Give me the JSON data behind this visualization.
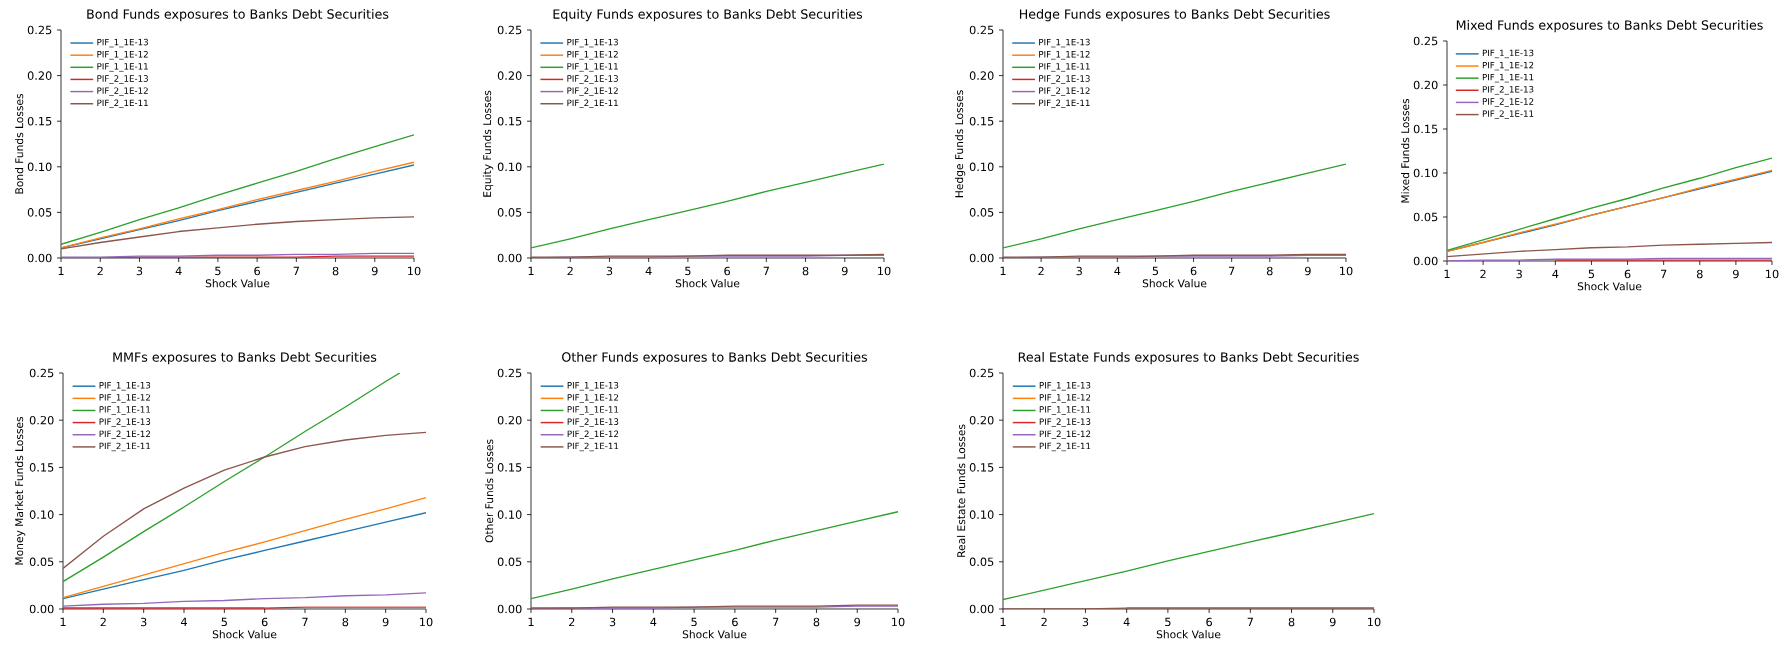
{
  "chart_data": [
    {
      "type": "line",
      "title": "Bond Funds exposures to Banks Debt Securities",
      "xlabel": "Shock Value",
      "ylabel": "Bond Funds Losses",
      "legend": "top left",
      "x": [
        1,
        2,
        3,
        4,
        5,
        6,
        7,
        8,
        9,
        10
      ],
      "xlim": [
        1,
        10
      ],
      "xticks": [
        1,
        2,
        3,
        4,
        5,
        6,
        7,
        8,
        9,
        10
      ],
      "ylim": [
        0,
        0.25
      ],
      "yticks": [
        {
          "value": 0,
          "label": "0.00"
        },
        {
          "value": 0.05,
          "label": "0.05"
        },
        {
          "value": 0.1,
          "label": "0.10"
        },
        {
          "value": 0.15,
          "label": "0.15"
        },
        {
          "value": 0.2,
          "label": "0.20"
        },
        {
          "value": 0.25,
          "label": "0.25"
        }
      ],
      "series": [
        {
          "name": "PIF_1_1E-13",
          "color": "#1f77b4",
          "values": [
            0.011,
            0.021,
            0.031,
            0.041,
            0.052,
            0.062,
            0.072,
            0.082,
            0.092,
            0.102
          ]
        },
        {
          "name": "PIF_1_1E-12",
          "color": "#ff7f0e",
          "values": [
            0.011,
            0.022,
            0.032,
            0.043,
            0.053,
            0.064,
            0.074,
            0.084,
            0.095,
            0.105
          ]
        },
        {
          "name": "PIF_1_1E-11",
          "color": "#2ca02c",
          "values": [
            0.015,
            0.028,
            0.042,
            0.055,
            0.069,
            0.082,
            0.095,
            0.109,
            0.122,
            0.135
          ]
        },
        {
          "name": "PIF_2_1E-13",
          "color": "#d62728",
          "values": [
            0.0,
            0.0,
            0.001,
            0.001,
            0.001,
            0.001,
            0.001,
            0.002,
            0.002,
            0.002
          ]
        },
        {
          "name": "PIF_2_1E-12",
          "color": "#9467bd",
          "values": [
            0.001,
            0.001,
            0.002,
            0.002,
            0.003,
            0.003,
            0.004,
            0.004,
            0.005,
            0.005
          ]
        },
        {
          "name": "PIF_2_1E-11",
          "color": "#8c564b",
          "values": [
            0.01,
            0.017,
            0.023,
            0.029,
            0.033,
            0.037,
            0.04,
            0.042,
            0.044,
            0.045
          ]
        }
      ]
    },
    {
      "type": "line",
      "title": "Equity Funds exposures to Banks Debt Securities",
      "xlabel": "Shock Value",
      "ylabel": "Equity Funds Losses",
      "legend": "top left",
      "x": [
        1,
        2,
        3,
        4,
        5,
        6,
        7,
        8,
        9,
        10
      ],
      "xlim": [
        1,
        10
      ],
      "xticks": [
        1,
        2,
        3,
        4,
        5,
        6,
        7,
        8,
        9,
        10
      ],
      "ylim": [
        0,
        0.25
      ],
      "yticks": [
        {
          "value": 0,
          "label": "0.00"
        },
        {
          "value": 0.05,
          "label": "0.05"
        },
        {
          "value": 0.1,
          "label": "0.10"
        },
        {
          "value": 0.15,
          "label": "0.15"
        },
        {
          "value": 0.2,
          "label": "0.20"
        },
        {
          "value": 0.25,
          "label": "0.25"
        }
      ],
      "series": [
        {
          "name": "PIF_1_1E-13",
          "color": "#1f77b4",
          "values": [
            null,
            null,
            null,
            null,
            null,
            null,
            null,
            null,
            null,
            null
          ]
        },
        {
          "name": "PIF_1_1E-12",
          "color": "#ff7f0e",
          "values": [
            null,
            null,
            null,
            null,
            null,
            null,
            null,
            null,
            null,
            null
          ]
        },
        {
          "name": "PIF_1_1E-11",
          "color": "#2ca02c",
          "values": [
            0.011,
            0.021,
            0.032,
            0.042,
            0.052,
            0.062,
            0.073,
            0.083,
            0.093,
            0.103
          ]
        },
        {
          "name": "PIF_2_1E-13",
          "color": "#d62728",
          "values": [
            null,
            null,
            null,
            null,
            null,
            null,
            null,
            null,
            null,
            null
          ]
        },
        {
          "name": "PIF_2_1E-12",
          "color": "#9467bd",
          "values": [
            0.0,
            0.001,
            0.001,
            0.001,
            0.002,
            0.002,
            0.002,
            0.002,
            0.003,
            0.003
          ]
        },
        {
          "name": "PIF_2_1E-11",
          "color": "#8c564b",
          "values": [
            0.001,
            0.001,
            0.002,
            0.002,
            0.002,
            0.003,
            0.003,
            0.003,
            0.003,
            0.004
          ]
        }
      ]
    },
    {
      "type": "line",
      "title": "Hedge Funds exposures to Banks Debt Securities",
      "xlabel": "Shock Value",
      "ylabel": "Hedge Funds Losses",
      "legend": "top left",
      "x": [
        1,
        2,
        3,
        4,
        5,
        6,
        7,
        8,
        9,
        10
      ],
      "xlim": [
        1,
        10
      ],
      "xticks": [
        1,
        2,
        3,
        4,
        5,
        6,
        7,
        8,
        9,
        10
      ],
      "ylim": [
        0,
        0.25
      ],
      "yticks": [
        {
          "value": 0,
          "label": "0.00"
        },
        {
          "value": 0.05,
          "label": "0.05"
        },
        {
          "value": 0.1,
          "label": "0.10"
        },
        {
          "value": 0.15,
          "label": "0.15"
        },
        {
          "value": 0.2,
          "label": "0.20"
        },
        {
          "value": 0.25,
          "label": "0.25"
        }
      ],
      "series": [
        {
          "name": "PIF_1_1E-13",
          "color": "#1f77b4",
          "values": [
            null,
            null,
            null,
            null,
            null,
            null,
            null,
            null,
            null,
            null
          ]
        },
        {
          "name": "PIF_1_1E-12",
          "color": "#ff7f0e",
          "values": [
            null,
            null,
            null,
            null,
            null,
            null,
            null,
            null,
            null,
            null
          ]
        },
        {
          "name": "PIF_1_1E-11",
          "color": "#2ca02c",
          "values": [
            0.011,
            0.021,
            0.032,
            0.042,
            0.052,
            0.062,
            0.073,
            0.083,
            0.093,
            0.103
          ]
        },
        {
          "name": "PIF_2_1E-13",
          "color": "#d62728",
          "values": [
            null,
            null,
            null,
            null,
            null,
            null,
            null,
            null,
            null,
            null
          ]
        },
        {
          "name": "PIF_2_1E-12",
          "color": "#9467bd",
          "values": [
            0.0,
            0.001,
            0.001,
            0.001,
            0.002,
            0.002,
            0.002,
            0.002,
            0.003,
            0.003
          ]
        },
        {
          "name": "PIF_2_1E-11",
          "color": "#8c564b",
          "values": [
            0.001,
            0.001,
            0.002,
            0.002,
            0.002,
            0.003,
            0.003,
            0.003,
            0.004,
            0.004
          ]
        }
      ]
    },
    {
      "type": "line",
      "title": "Mixed Funds exposures to Banks Debt Securities",
      "xlabel": "Shock Value",
      "ylabel": "Mixed Funds Losses",
      "legend": "top left",
      "x": [
        1,
        2,
        3,
        4,
        5,
        6,
        7,
        8,
        9,
        10
      ],
      "xlim": [
        1,
        10
      ],
      "xticks": [
        1,
        2,
        3,
        4,
        5,
        6,
        7,
        8,
        9,
        10
      ],
      "ylim": [
        0,
        0.25
      ],
      "yticks": [
        {
          "value": 0,
          "label": "0.00"
        },
        {
          "value": 0.05,
          "label": "0.05"
        },
        {
          "value": 0.1,
          "label": "0.10"
        },
        {
          "value": 0.15,
          "label": "0.15"
        },
        {
          "value": 0.2,
          "label": "0.20"
        },
        {
          "value": 0.25,
          "label": "0.25"
        }
      ],
      "series": [
        {
          "name": "PIF_1_1E-13",
          "color": "#1f77b4",
          "values": [
            0.011,
            0.021,
            0.031,
            0.041,
            0.052,
            0.062,
            0.072,
            0.082,
            0.092,
            0.102
          ]
        },
        {
          "name": "PIF_1_1E-12",
          "color": "#ff7f0e",
          "values": [
            0.011,
            0.021,
            0.032,
            0.042,
            0.052,
            0.062,
            0.072,
            0.083,
            0.093,
            0.103
          ]
        },
        {
          "name": "PIF_1_1E-11",
          "color": "#2ca02c",
          "values": [
            0.012,
            0.024,
            0.036,
            0.048,
            0.06,
            0.071,
            0.083,
            0.094,
            0.106,
            0.117
          ]
        },
        {
          "name": "PIF_2_1E-13",
          "color": "#d62728",
          "values": [
            null,
            null,
            null,
            0.001,
            0.001,
            0.001,
            0.001,
            0.001,
            0.001,
            0.001
          ]
        },
        {
          "name": "PIF_2_1E-12",
          "color": "#9467bd",
          "values": [
            0.0,
            0.001,
            0.001,
            0.002,
            0.002,
            0.002,
            0.003,
            0.003,
            0.003,
            0.003
          ]
        },
        {
          "name": "PIF_2_1E-11",
          "color": "#8c564b",
          "values": [
            0.005,
            0.008,
            0.011,
            0.013,
            0.015,
            0.016,
            0.018,
            0.019,
            0.02,
            0.021
          ]
        }
      ]
    },
    {
      "type": "line",
      "title": "MMFs exposures to Banks Debt Securities",
      "xlabel": "Shock Value",
      "ylabel": "Money Market Funds Losses",
      "legend": "top left",
      "x": [
        1,
        2,
        3,
        4,
        5,
        6,
        7,
        8,
        9,
        10
      ],
      "xlim": [
        1,
        10
      ],
      "xticks": [
        1,
        2,
        3,
        4,
        5,
        6,
        7,
        8,
        9,
        10
      ],
      "ylim": [
        0,
        0.25
      ],
      "yticks": [
        {
          "value": 0,
          "label": "0.00"
        },
        {
          "value": 0.05,
          "label": "0.05"
        },
        {
          "value": 0.1,
          "label": "0.10"
        },
        {
          "value": 0.15,
          "label": "0.15"
        },
        {
          "value": 0.2,
          "label": "0.20"
        },
        {
          "value": 0.25,
          "label": "0.25"
        }
      ],
      "series": [
        {
          "name": "PIF_1_1E-13",
          "color": "#1f77b4",
          "values": [
            0.011,
            0.021,
            0.031,
            0.041,
            0.052,
            0.062,
            0.072,
            0.082,
            0.092,
            0.102
          ]
        },
        {
          "name": "PIF_1_1E-12",
          "color": "#ff7f0e",
          "values": [
            0.012,
            0.024,
            0.036,
            0.048,
            0.06,
            0.071,
            0.083,
            0.095,
            0.106,
            0.118
          ]
        },
        {
          "name": "PIF_1_1E-11",
          "color": "#2ca02c",
          "x": [
            1,
            2,
            3,
            4,
            5,
            6,
            7,
            8,
            9,
            9.35
          ],
          "values": [
            0.029,
            0.055,
            0.082,
            0.108,
            0.135,
            0.161,
            0.188,
            0.214,
            0.241,
            0.25
          ]
        },
        {
          "name": "PIF_2_1E-13",
          "color": "#d62728",
          "values": [
            0.001,
            0.001,
            0.001,
            0.001,
            0.001,
            0.001,
            0.002,
            0.002,
            0.002,
            0.002
          ]
        },
        {
          "name": "PIF_2_1E-12",
          "color": "#9467bd",
          "values": [
            0.003,
            0.005,
            0.006,
            0.008,
            0.009,
            0.011,
            0.012,
            0.014,
            0.015,
            0.017
          ]
        },
        {
          "name": "PIF_2_1E-11",
          "color": "#8c564b",
          "values": [
            0.043,
            0.077,
            0.106,
            0.128,
            0.147,
            0.161,
            0.172,
            0.179,
            0.184,
            0.187
          ]
        }
      ]
    },
    {
      "type": "line",
      "title": "Other Funds exposures to Banks Debt Securities",
      "xlabel": "Shock Value",
      "ylabel": "Other Funds Losses",
      "legend": "top left",
      "x": [
        1,
        2,
        3,
        4,
        5,
        6,
        7,
        8,
        9,
        10
      ],
      "xlim": [
        1,
        10
      ],
      "xticks": [
        1,
        2,
        3,
        4,
        5,
        6,
        7,
        8,
        9,
        10
      ],
      "ylim": [
        0,
        0.25
      ],
      "yticks": [
        {
          "value": 0,
          "label": "0.00"
        },
        {
          "value": 0.05,
          "label": "0.05"
        },
        {
          "value": 0.1,
          "label": "0.10"
        },
        {
          "value": 0.15,
          "label": "0.15"
        },
        {
          "value": 0.2,
          "label": "0.20"
        },
        {
          "value": 0.25,
          "label": "0.25"
        }
      ],
      "series": [
        {
          "name": "PIF_1_1E-13",
          "color": "#1f77b4",
          "values": [
            null,
            null,
            null,
            null,
            null,
            null,
            null,
            null,
            null,
            null
          ]
        },
        {
          "name": "PIF_1_1E-12",
          "color": "#ff7f0e",
          "values": [
            null,
            null,
            null,
            null,
            null,
            null,
            null,
            null,
            null,
            null
          ]
        },
        {
          "name": "PIF_1_1E-11",
          "color": "#2ca02c",
          "values": [
            0.011,
            0.021,
            0.032,
            0.042,
            0.052,
            0.062,
            0.073,
            0.083,
            0.093,
            0.103
          ]
        },
        {
          "name": "PIF_2_1E-13",
          "color": "#d62728",
          "values": [
            null,
            null,
            null,
            null,
            null,
            null,
            null,
            null,
            null,
            null
          ]
        },
        {
          "name": "PIF_2_1E-12",
          "color": "#9467bd",
          "values": [
            0.0,
            0.001,
            0.001,
            0.001,
            0.002,
            0.002,
            0.002,
            0.002,
            0.003,
            0.003
          ]
        },
        {
          "name": "PIF_2_1E-11",
          "color": "#8c564b",
          "values": [
            0.001,
            0.001,
            0.002,
            0.002,
            0.002,
            0.003,
            0.003,
            0.003,
            0.004,
            0.004
          ]
        }
      ]
    },
    {
      "type": "line",
      "title": "Real Estate Funds exposures to Banks Debt Securities",
      "xlabel": "Shock Value",
      "ylabel": "Real Estate Funds Losses",
      "legend": "top left",
      "x": [
        1,
        2,
        3,
        4,
        5,
        6,
        7,
        8,
        9,
        10
      ],
      "xlim": [
        1,
        10
      ],
      "xticks": [
        1,
        2,
        3,
        4,
        5,
        6,
        7,
        8,
        9,
        10
      ],
      "ylim": [
        0,
        0.25
      ],
      "yticks": [
        {
          "value": 0,
          "label": "0.00"
        },
        {
          "value": 0.05,
          "label": "0.05"
        },
        {
          "value": 0.1,
          "label": "0.10"
        },
        {
          "value": 0.15,
          "label": "0.15"
        },
        {
          "value": 0.2,
          "label": "0.20"
        },
        {
          "value": 0.25,
          "label": "0.25"
        }
      ],
      "series": [
        {
          "name": "PIF_1_1E-13",
          "color": "#1f77b4",
          "values": [
            null,
            null,
            null,
            null,
            null,
            null,
            null,
            null,
            null,
            null
          ]
        },
        {
          "name": "PIF_1_1E-12",
          "color": "#ff7f0e",
          "values": [
            null,
            null,
            null,
            null,
            null,
            null,
            null,
            null,
            null,
            null
          ]
        },
        {
          "name": "PIF_1_1E-11",
          "color": "#2ca02c",
          "values": [
            0.01,
            0.02,
            0.03,
            0.04,
            0.051,
            0.061,
            0.071,
            0.081,
            0.091,
            0.101
          ]
        },
        {
          "name": "PIF_2_1E-13",
          "color": "#d62728",
          "values": [
            null,
            null,
            null,
            null,
            null,
            null,
            null,
            null,
            null,
            null
          ]
        },
        {
          "name": "PIF_2_1E-12",
          "color": "#9467bd",
          "values": [
            null,
            null,
            null,
            null,
            null,
            null,
            null,
            null,
            null,
            null
          ]
        },
        {
          "name": "PIF_2_1E-11",
          "color": "#8c564b",
          "values": [
            0.0,
            0.0,
            0.0,
            0.001,
            0.001,
            0.001,
            0.001,
            0.001,
            0.001,
            0.001
          ]
        }
      ]
    }
  ]
}
